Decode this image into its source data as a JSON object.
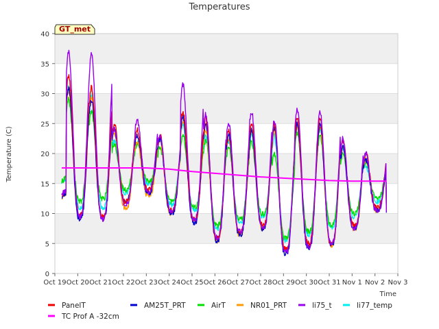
{
  "chart_data": {
    "type": "line",
    "title": "Temperatures",
    "xlabel": "Time",
    "ylabel": "Temperature (C)",
    "tag": "GT_met",
    "ylim": [
      0,
      40
    ],
    "yticks": [
      0,
      5,
      10,
      15,
      20,
      25,
      30,
      35,
      40
    ],
    "xlim": [
      0,
      15
    ],
    "xticks": [
      {
        "x": 0,
        "label": "Oct 19"
      },
      {
        "x": 1,
        "label": "Oct 20"
      },
      {
        "x": 2,
        "label": "Oct 21"
      },
      {
        "x": 3,
        "label": "Oct 22"
      },
      {
        "x": 4,
        "label": "Oct 23"
      },
      {
        "x": 5,
        "label": "Oct 24"
      },
      {
        "x": 6,
        "label": "Oct 25"
      },
      {
        "x": 7,
        "label": "Oct 26"
      },
      {
        "x": 8,
        "label": "Oct 27"
      },
      {
        "x": 9,
        "label": "Oct 28"
      },
      {
        "x": 10,
        "label": "Oct 29"
      },
      {
        "x": 11,
        "label": "Oct 30"
      },
      {
        "x": 12,
        "label": "Oct 31"
      },
      {
        "x": 13,
        "label": "Nov 1"
      },
      {
        "x": 14,
        "label": "Nov 2"
      },
      {
        "x": 15,
        "label": "Nov 3"
      }
    ],
    "grid": "horizontal bands",
    "legend_position": "bottom",
    "daily_extremes": {
      "days": [
        0.3,
        1,
        2,
        3,
        4,
        5,
        6,
        7,
        8,
        9,
        10,
        11,
        12,
        13,
        14,
        14.5
      ],
      "series": [
        {
          "name": "PanelT",
          "color": "#ee0000",
          "max": [
            14,
            33,
            31,
            25,
            24,
            23,
            27,
            26,
            24,
            25,
            25,
            26,
            26,
            22,
            20,
            11
          ],
          "min": [
            13,
            10,
            9.5,
            12,
            14,
            10.5,
            9,
            6,
            7,
            8,
            4,
            5,
            5,
            8,
            11,
            8
          ]
        },
        {
          "name": "AM25T_PRT",
          "color": "#0000cc",
          "max": [
            13.5,
            31,
            29,
            24,
            23,
            22.5,
            26,
            25,
            23,
            24,
            24.5,
            25,
            25,
            21,
            19,
            10.5
          ],
          "min": [
            12.5,
            9,
            9,
            12,
            13.5,
            10,
            8.5,
            5.5,
            6.5,
            7.5,
            3.2,
            4.3,
            4.8,
            7.5,
            10.5,
            7.8
          ]
        },
        {
          "name": "AirT",
          "color": "#00dd00",
          "max": [
            16.5,
            29,
            27,
            21.5,
            21.5,
            21,
            23,
            22,
            21,
            22,
            20,
            23.5,
            23,
            20,
            18.5,
            11
          ],
          "min": [
            15,
            12,
            12.5,
            14,
            15.5,
            12,
            11,
            8,
            9,
            10,
            6,
            7,
            8,
            10,
            12.5,
            9.5
          ]
        },
        {
          "name": "NR01_PRT",
          "color": "#ff9900",
          "max": [
            13.5,
            30.5,
            29.5,
            23.5,
            22,
            22,
            25.5,
            24,
            22.5,
            24,
            24,
            24.5,
            24.5,
            21,
            19,
            10.5
          ],
          "min": [
            12.5,
            9.5,
            9.3,
            11,
            13,
            10,
            9,
            5.5,
            6.5,
            7.5,
            4,
            4.5,
            4.8,
            7.5,
            10.5,
            8
          ]
        },
        {
          "name": "li75_t",
          "color": "#9900ee",
          "max": [
            14,
            37,
            36.5,
            24,
            25.5,
            23,
            31.5,
            26.5,
            25,
            27,
            25.5,
            27.5,
            27,
            22.5,
            20,
            11
          ],
          "min": [
            13,
            9.5,
            9,
            11.5,
            13.5,
            10.5,
            9,
            6,
            7,
            7.5,
            3.5,
            4.5,
            5,
            7.5,
            10.5,
            8
          ]
        },
        {
          "name": "li77_temp",
          "color": "#00eeee",
          "max": [
            16,
            31,
            30,
            22,
            22,
            22,
            25,
            23,
            22,
            23,
            23,
            23.5,
            24,
            21,
            18,
            12
          ],
          "min": [
            15,
            11,
            11,
            13.5,
            15,
            11.5,
            10.5,
            7.5,
            8.5,
            9.5,
            5.5,
            6.5,
            7.5,
            9.5,
            12,
            9
          ]
        }
      ]
    },
    "series": [
      {
        "name": "PanelT",
        "color": "#ee0000"
      },
      {
        "name": "AM25T_PRT",
        "color": "#0000cc"
      },
      {
        "name": "AirT",
        "color": "#00dd00"
      },
      {
        "name": "NR01_PRT",
        "color": "#ff9900"
      },
      {
        "name": "li75_t",
        "color": "#9900ee"
      },
      {
        "name": "li77_temp",
        "color": "#00eeee"
      },
      {
        "name": "TC Prof A -32cm",
        "color": "#ff00ff",
        "x": [
          0.3,
          2,
          4,
          5,
          6,
          7,
          8,
          9,
          10,
          11,
          12,
          13,
          14,
          14.5
        ],
        "y": [
          17.6,
          17.6,
          17.6,
          17.4,
          17.0,
          16.7,
          16.4,
          16.1,
          15.9,
          15.7,
          15.5,
          15.4,
          15.4,
          15.4
        ]
      }
    ]
  }
}
